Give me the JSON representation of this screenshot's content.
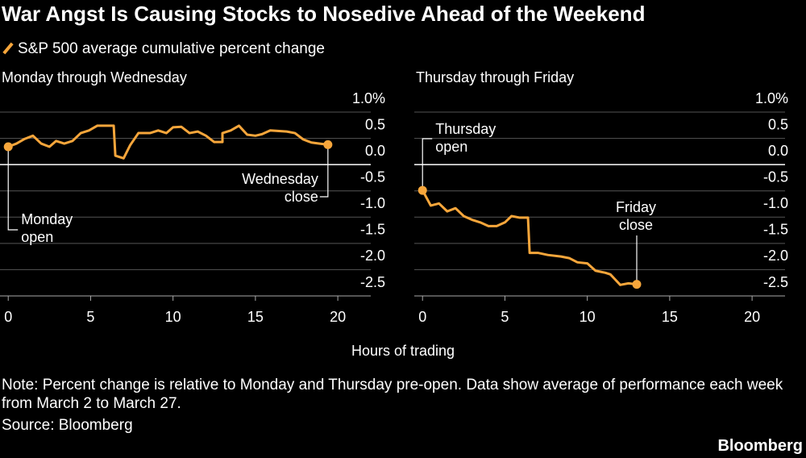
{
  "title": "War Angst Is Causing Stocks to Nosedive Ahead of the Weekend",
  "x_label": "Hours of trading",
  "note": "Note: Percent change is relative to Monday and Thursday pre-open. Data show average of performance each week from March 2 to March 27.",
  "source": "Source: Bloomberg",
  "brand": "Bloomberg",
  "chart_data": [
    {
      "type": "line",
      "subtitle": "Monday through Wednesday",
      "xlim": [
        -0.5,
        22
      ],
      "xticks": [
        0,
        5,
        10,
        15,
        20
      ],
      "ylim": [
        -2.5,
        1.0
      ],
      "yticks": [
        {
          "value": 1.0,
          "label": "1.0%"
        },
        0.5,
        {
          "value": 0,
          "label": "0.0"
        },
        -0.5,
        {
          "value": -1,
          "label": "-1.0"
        },
        -1.5,
        {
          "value": -2,
          "label": "-2.0"
        },
        -2.5
      ],
      "grid": true,
      "series": [
        {
          "name": "S&P 500 average cumulative percent change",
          "color": "#f7a63b",
          "x": [
            0,
            0.5,
            1,
            1.5,
            2,
            2.5,
            2.9,
            3.4,
            3.9,
            4.4,
            4.9,
            5.4,
            6.4,
            6.5,
            7,
            7.4,
            7.9,
            8.6,
            9.1,
            9.6,
            10,
            10.5,
            11,
            11.5,
            12,
            12.5,
            13,
            13,
            13.5,
            14,
            14.5,
            15,
            15.4,
            15.9,
            16.9,
            17.4,
            17.9,
            18.4,
            18.9,
            19.4
          ],
          "values": [
            0.34,
            0.4,
            0.49,
            0.55,
            0.4,
            0.34,
            0.45,
            0.4,
            0.45,
            0.6,
            0.65,
            0.74,
            0.74,
            0.17,
            0.12,
            0.37,
            0.6,
            0.6,
            0.65,
            0.6,
            0.71,
            0.72,
            0.6,
            0.63,
            0.55,
            0.43,
            0.43,
            0.6,
            0.65,
            0.74,
            0.57,
            0.55,
            0.58,
            0.65,
            0.63,
            0.6,
            0.48,
            0.42,
            0.4,
            0.38
          ]
        }
      ],
      "annotations": [
        {
          "lines": [
            "Monday",
            "open"
          ]
        },
        {
          "lines": [
            "Wednesday",
            "close"
          ]
        }
      ]
    },
    {
      "type": "line",
      "subtitle": "Thursday through Friday",
      "xlim": [
        -0.5,
        22
      ],
      "xticks": [
        0,
        5,
        10,
        15,
        20
      ],
      "ylim": [
        -2.5,
        1.0
      ],
      "yticks": [
        {
          "value": 1.0,
          "label": "1.0%"
        },
        0.5,
        {
          "value": 0,
          "label": "0.0"
        },
        -0.5,
        {
          "value": -1,
          "label": "-1.0"
        },
        -1.5,
        {
          "value": -2,
          "label": "-2.0"
        },
        -2.5
      ],
      "grid": true,
      "series": [
        {
          "name": "S&P 500 average cumulative percent change",
          "color": "#f7a63b",
          "x": [
            0,
            0.5,
            1,
            1.5,
            2,
            2.5,
            3,
            3.5,
            4,
            4.5,
            5,
            5.4,
            5.9,
            6.4,
            6.5,
            7,
            7.6,
            8.4,
            8.9,
            9.4,
            10,
            10.5,
            11.1,
            11.4,
            12,
            12.5,
            13
          ],
          "values": [
            -0.49,
            -0.78,
            -0.74,
            -0.89,
            -0.83,
            -0.98,
            -1.05,
            -1.1,
            -1.17,
            -1.17,
            -1.1,
            -0.98,
            -1.01,
            -1.01,
            -1.68,
            -1.68,
            -1.72,
            -1.75,
            -1.78,
            -1.86,
            -1.88,
            -2.02,
            -2.06,
            -2.09,
            -2.29,
            -2.26,
            -2.28
          ]
        }
      ],
      "annotations": [
        {
          "lines": [
            "Thursday",
            "open"
          ]
        },
        {
          "lines": [
            "Friday",
            "close"
          ]
        }
      ]
    }
  ]
}
